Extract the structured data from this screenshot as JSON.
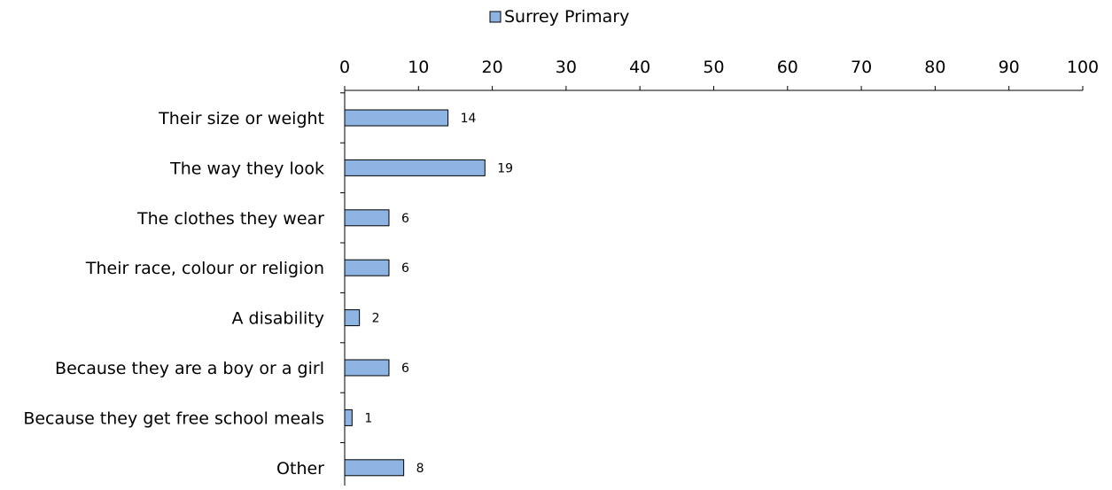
{
  "chart_data": {
    "type": "bar",
    "orientation": "horizontal",
    "title": "",
    "xlabel": "",
    "ylabel": "",
    "xlim": [
      0,
      100
    ],
    "x_ticks": [
      0,
      10,
      20,
      30,
      40,
      50,
      60,
      70,
      80,
      90,
      100
    ],
    "categories": [
      "Their size or weight",
      "The way they look",
      "The clothes they wear",
      "Their race, colour or religion",
      "A disability",
      "Because they are a boy or a girl",
      "Because they get free school meals",
      "Other"
    ],
    "series": [
      {
        "name": "Surrey Primary",
        "values": [
          14,
          19,
          6,
          6,
          2,
          6,
          1,
          8
        ]
      }
    ],
    "data_labels": [
      "14",
      "19",
      "6",
      "6",
      "2",
      "6",
      "1",
      "8"
    ],
    "legend_position": "top",
    "grid": false,
    "axis_position": "top"
  },
  "colors": {
    "bar_fill": "#8eb4e3",
    "bar_stroke": "#000000",
    "axis": "#000000"
  }
}
